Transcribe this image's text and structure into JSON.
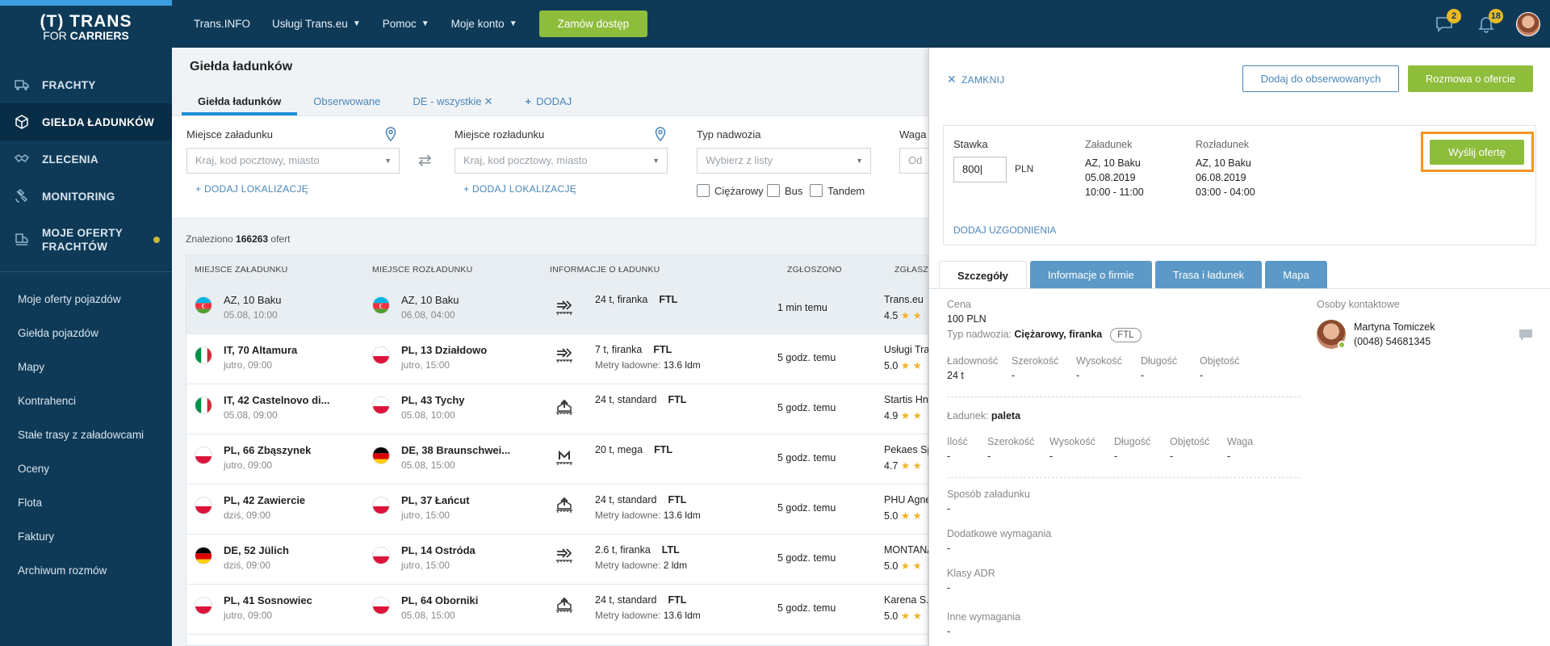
{
  "logo": {
    "line1": "(T) TRANS",
    "line2a": "FOR ",
    "line2b": "CARRIERS"
  },
  "nav": [
    {
      "label": "FRACHTY",
      "icon": "truck-icon"
    },
    {
      "label": "GIEŁDA ŁADUNKÓW",
      "icon": "cube-icon"
    },
    {
      "label": "ZLECENIA",
      "icon": "handshake-icon"
    },
    {
      "label": "MONITORING",
      "icon": "satellite-icon"
    },
    {
      "label1": "MOJE OFERTY",
      "label2": "FRACHTÓW",
      "icon": "truck-list-icon"
    }
  ],
  "sub_nav": [
    "Moje oferty pojazdów",
    "Giełda pojazdów",
    "Mapy",
    "Kontrahenci",
    "Stałe trasy z załadowcami",
    "Oceny",
    "Flota",
    "Faktury",
    "Archiwum rozmów"
  ],
  "topbar": {
    "link1": "Trans.INFO",
    "link2": "Usługi Trans.eu",
    "link3": "Pomoc",
    "link4": "Moje konto",
    "order_button": "Zamów dostęp",
    "messages_badge": "2",
    "notifications_badge": "18"
  },
  "page": {
    "title": "Giełda ładunków",
    "tabs": [
      "Giełda ładunków",
      "Obserwowane",
      "DE - wszystkie",
      "DODAJ"
    ]
  },
  "filters": {
    "loading_label": "Miejsce załadunku",
    "loading_placeholder": "Kraj, kod pocztowy, miasto",
    "unloading_label": "Miejsce rozładunku",
    "unloading_placeholder": "Kraj, kod pocztowy, miasto",
    "add_location": "DODAJ LOKALIZACJĘ",
    "body_label": "Typ nadwozia",
    "body_placeholder": "Wybierz z listy",
    "weight_label": "Waga",
    "weight_placeholder": "Od",
    "checkbox1": "Ciężarowy",
    "checkbox2": "Bus",
    "checkbox3": "Tandem"
  },
  "found": {
    "prefix": "Znaleziono ",
    "count": "166263",
    "suffix": " ofert"
  },
  "table": {
    "headers": [
      "MIEJSCE ZAŁADUNKU",
      "MIEJSCE ROZŁADUNKU",
      "INFORMACJE O ŁADUNKU",
      "ZGŁOSZONO",
      "ZGŁASZAJĄCY"
    ],
    "rows": [
      {
        "from_flag": "az",
        "from": "AZ, 10 Baku",
        "from_date": "05.08, 10:00",
        "to_flag": "az",
        "to": "AZ, 10 Baku",
        "to_date": "06.08, 04:00",
        "icon": "side-load-icon",
        "cargo": "24 t, firanka",
        "type": "FTL",
        "meters_label": "",
        "meters": "",
        "posted": "1 min temu",
        "company": "Trans.eu",
        "rating": "4.5"
      },
      {
        "from_flag": "it",
        "from": "IT, 70 Altamura",
        "from_date": "jutro, 09:00",
        "to_flag": "pl",
        "to": "PL, 13 Działdowo",
        "to_date": "jutro, 15:00",
        "icon": "side-load-icon",
        "cargo": "7 t, firanka",
        "type": "FTL",
        "meters_label": "Metry ładowne:",
        "meters": "13.6 ldm",
        "posted": "5 godz. temu",
        "company": "Usługi Tra",
        "rating": "5.0"
      },
      {
        "from_flag": "it",
        "from": "IT, 42 Castelnovo di...",
        "from_date": "05.08, 09:00",
        "to_flag": "pl",
        "to": "PL, 43 Tychy",
        "to_date": "05.08, 10:00",
        "icon": "top-load-icon",
        "cargo": "24 t, standard",
        "type": "FTL",
        "meters_label": "",
        "meters": "",
        "posted": "5 godz. temu",
        "company": "Startis Hn",
        "rating": "4.9"
      },
      {
        "from_flag": "pl",
        "from": "PL, 66 Zbąszynek",
        "from_date": "jutro, 09:00",
        "to_flag": "de",
        "to": "DE, 38 Braunschwei...",
        "to_date": "05.08, 15:00",
        "icon": "mega-icon",
        "cargo": "20 t, mega",
        "type": "FTL",
        "meters_label": "",
        "meters": "",
        "posted": "5 godz. temu",
        "company": "Pekaes Sp",
        "rating": "4.7"
      },
      {
        "from_flag": "pl",
        "from": "PL, 42 Zawiercie",
        "from_date": "dziś, 09:00",
        "to_flag": "pl",
        "to": "PL, 37 Łańcut",
        "to_date": "jutro, 15:00",
        "icon": "top-load-icon",
        "cargo": "24 t, standard",
        "type": "FTL",
        "meters_label": "Metry ładowne:",
        "meters": "13.6 ldm",
        "posted": "5 godz. temu",
        "company": "PHU Agne",
        "rating": "5.0"
      },
      {
        "from_flag": "de",
        "from": "DE, 52 Jülich",
        "from_date": "dziś, 09:00",
        "to_flag": "pl",
        "to": "PL, 14 Ostróda",
        "to_date": "jutro, 15:00",
        "icon": "side-load-icon",
        "cargo": "2.6 t, firanka",
        "type": "LTL",
        "meters_label": "Metry ładowne:",
        "meters": "2 ldm",
        "posted": "5 godz. temu",
        "company": "MONTANA",
        "rating": "5.0"
      },
      {
        "from_flag": "pl",
        "from": "PL, 41 Sosnowiec",
        "from_date": "jutro, 09:00",
        "to_flag": "pl",
        "to": "PL, 64 Oborniki",
        "to_date": "05.08, 15:00",
        "icon": "top-load-icon",
        "cargo": "24 t, standard",
        "type": "FTL",
        "meters_label": "Metry ładowne:",
        "meters": "13.6 ldm",
        "posted": "5 godz. temu",
        "company": "Karena S.",
        "rating": "5.0"
      }
    ]
  },
  "panel": {
    "close": "ZAMKNIJ",
    "observe_button": "Dodaj do obserwowanych",
    "talk_button": "Rozmowa o ofercie",
    "rate_label": "Stawka",
    "rate_value": "800",
    "currency": "PLN",
    "loading_label": "Załadunek",
    "loading_place": "AZ, 10 Baku",
    "loading_date": "05.08.2019",
    "loading_time": "10:00 - 11:00",
    "unloading_label": "Rozładunek",
    "unloading_place": "AZ, 10 Baku",
    "unloading_date": "06.08.2019",
    "unloading_time": "03:00 - 04:00",
    "send_button": "Wyślij ofertę",
    "add_agreements": "DODAJ UZGODNIENIA",
    "tabs": [
      "Szczegóły",
      "Informacje o firmie",
      "Trasa i ładunek",
      "Mapa"
    ],
    "price_label": "Cena",
    "price_value": "100 PLN",
    "body_type_label": "Typ nadwozia:",
    "body_type_value": "Ciężarowy, firanka",
    "load_type": "FTL",
    "dims": {
      "h1": "Ładowność",
      "h2": "Szerokość",
      "h3": "Wysokość",
      "h4": "Długość",
      "h5": "Objętość",
      "v1": "24 t",
      "v2": "-",
      "v3": "-",
      "v4": "-",
      "v5": "-"
    },
    "cargo_label": "Ładunek:",
    "cargo_value": "paleta",
    "cargo_dims": {
      "h1": "Ilość",
      "h2": "Szerokość",
      "h3": "Wysokość",
      "h4": "Długość",
      "h5": "Objętość",
      "h6": "Waga",
      "v": "-"
    },
    "loading_method_label": "Sposób załadunku",
    "loading_method_value": "-",
    "extra_label": "Dodatkowe wymagania",
    "extra_value": "-",
    "adr_label": "Klasy ADR",
    "adr_value": "-",
    "other_label": "Inne wymagania",
    "other_value": "-",
    "contacts_label": "Osoby kontaktowe",
    "contact_name": "Martyna Tomiczek",
    "contact_phone": "(0048) 54681345"
  }
}
